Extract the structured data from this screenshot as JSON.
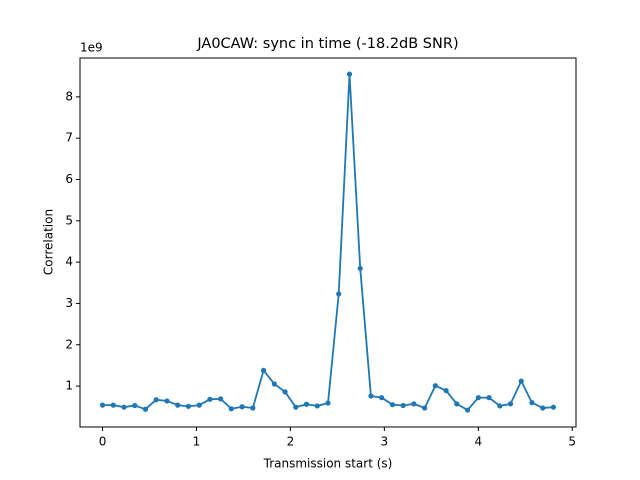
{
  "chart_data": {
    "type": "line",
    "title": "JA0CAW: sync in time (-18.2dB SNR)",
    "xlabel": "Transmission start (s)",
    "ylabel": "Correlation",
    "y_offset_label": "1e9",
    "x": [
      0,
      0.114,
      0.229,
      0.343,
      0.457,
      0.571,
      0.686,
      0.8,
      0.914,
      1.029,
      1.143,
      1.257,
      1.371,
      1.486,
      1.6,
      1.714,
      1.829,
      1.943,
      2.057,
      2.171,
      2.286,
      2.4,
      2.514,
      2.629,
      2.743,
      2.857,
      2.971,
      3.086,
      3.2,
      3.314,
      3.429,
      3.543,
      3.657,
      3.771,
      3.886,
      4.0,
      4.114,
      4.229,
      4.343,
      4.457,
      4.571,
      4.686,
      4.8
    ],
    "series": [
      {
        "name": "Correlation",
        "color": "#1f77b4",
        "values": [
          0.54,
          0.54,
          0.49,
          0.53,
          0.44,
          0.67,
          0.64,
          0.54,
          0.51,
          0.54,
          0.68,
          0.69,
          0.45,
          0.5,
          0.47,
          1.38,
          1.05,
          0.86,
          0.49,
          0.56,
          0.52,
          0.59,
          3.23,
          8.55,
          3.85,
          0.76,
          0.72,
          0.55,
          0.53,
          0.57,
          0.47,
          1.01,
          0.89,
          0.57,
          0.42,
          0.72,
          0.72,
          0.52,
          0.57,
          1.12,
          0.6,
          0.47,
          0.49
        ]
      }
    ],
    "xlim": [
      -0.24,
      5.04
    ],
    "ylim": [
      0.01,
      8.94
    ],
    "xticks": [
      0,
      1,
      2,
      3,
      4,
      5
    ],
    "yticks": [
      1,
      2,
      3,
      4,
      5,
      6,
      7,
      8
    ],
    "grid": false
  }
}
